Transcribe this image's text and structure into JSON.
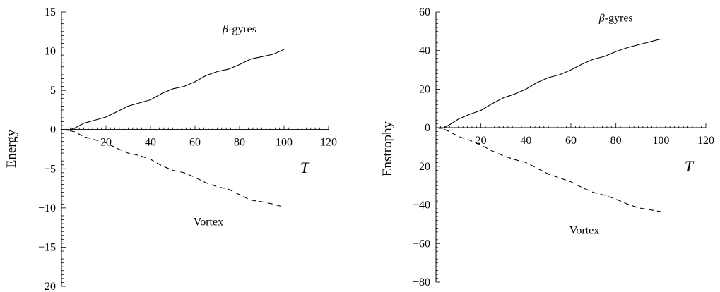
{
  "chart_data": [
    {
      "type": "line",
      "ylabel": "Energy",
      "xlabel": "T",
      "xlim": [
        0,
        120
      ],
      "ylim": [
        -20,
        15
      ],
      "x_ticks": [
        20,
        40,
        60,
        80,
        100,
        120
      ],
      "x_tick_labels": [
        "20",
        "40",
        "60",
        "80",
        "100",
        "120"
      ],
      "y_ticks": [
        15,
        10,
        5,
        0,
        -5,
        -10,
        -15,
        -20
      ],
      "y_tick_labels": [
        "15",
        "10",
        "5",
        "0",
        "−5",
        "−10",
        "−15",
        "−20"
      ],
      "grid": false,
      "series": [
        {
          "name": "β-gyres",
          "style": "solid",
          "x": [
            0,
            3,
            6,
            10,
            15,
            20,
            25,
            30,
            35,
            40,
            45,
            50,
            55,
            60,
            65,
            70,
            75,
            80,
            85,
            90,
            95,
            100
          ],
          "y": [
            0,
            -0.1,
            0.2,
            0.8,
            1.2,
            1.6,
            2.3,
            3.0,
            3.4,
            3.8,
            4.6,
            5.2,
            5.5,
            6.1,
            6.9,
            7.4,
            7.7,
            8.3,
            9.0,
            9.3,
            9.6,
            10.2
          ]
        },
        {
          "name": "Vortex",
          "style": "dashed",
          "x": [
            0,
            3,
            6,
            10,
            15,
            20,
            25,
            30,
            35,
            40,
            45,
            50,
            55,
            60,
            65,
            70,
            75,
            80,
            85,
            90,
            95,
            100
          ],
          "y": [
            0,
            -0.1,
            -0.3,
            -0.9,
            -1.3,
            -1.7,
            -2.4,
            -3.0,
            -3.3,
            -3.8,
            -4.6,
            -5.2,
            -5.5,
            -6.1,
            -6.8,
            -7.3,
            -7.6,
            -8.3,
            -9.0,
            -9.2,
            -9.5,
            -9.9
          ]
        }
      ]
    },
    {
      "type": "line",
      "ylabel": "Enstrophy",
      "xlabel": "T",
      "xlim": [
        0,
        120
      ],
      "ylim": [
        -80,
        60
      ],
      "x_ticks": [
        20,
        40,
        60,
        80,
        100,
        120
      ],
      "x_tick_labels": [
        "20",
        "40",
        "60",
        "80",
        "100",
        "120"
      ],
      "y_ticks": [
        60,
        40,
        20,
        0,
        -20,
        -40,
        -60,
        -80
      ],
      "y_tick_labels": [
        "60",
        "40",
        "20",
        "0",
        "−20",
        "−40",
        "−60",
        "−80"
      ],
      "grid": false,
      "series": [
        {
          "name": "β-gyres",
          "style": "solid",
          "x": [
            0,
            3,
            6,
            10,
            15,
            20,
            25,
            30,
            35,
            40,
            45,
            50,
            55,
            60,
            65,
            70,
            75,
            80,
            85,
            90,
            95,
            100
          ],
          "y": [
            0,
            -0.3,
            1.5,
            4.5,
            7.0,
            9.0,
            12.5,
            15.5,
            17.5,
            20.0,
            23.5,
            26.0,
            27.5,
            30.0,
            33.0,
            35.5,
            37.0,
            39.5,
            41.5,
            43.0,
            44.5,
            46.0
          ]
        },
        {
          "name": "Vortex",
          "style": "dashed",
          "x": [
            0,
            3,
            6,
            10,
            15,
            20,
            25,
            30,
            35,
            40,
            45,
            50,
            55,
            60,
            65,
            70,
            75,
            80,
            85,
            90,
            95,
            100
          ],
          "y": [
            0,
            -0.5,
            -2.0,
            -4.5,
            -6.5,
            -9.0,
            -12.0,
            -14.5,
            -16.5,
            -18.0,
            -21.0,
            -24.0,
            -26.0,
            -28.0,
            -31.0,
            -33.5,
            -35.0,
            -37.0,
            -39.5,
            -41.5,
            -42.5,
            -43.5
          ]
        }
      ]
    }
  ],
  "annotations": [
    {
      "chart": 0,
      "text_base": "-gyres",
      "greek": "β",
      "x": 80,
      "y": 12.4
    },
    {
      "chart": 0,
      "text": "Vortex",
      "x": 66,
      "y": -12.2
    },
    {
      "chart": 1,
      "text_base": "-gyres",
      "greek": "β",
      "x": 80,
      "y": 55
    },
    {
      "chart": 1,
      "text": "Vortex",
      "x": 66,
      "y": -55
    }
  ]
}
